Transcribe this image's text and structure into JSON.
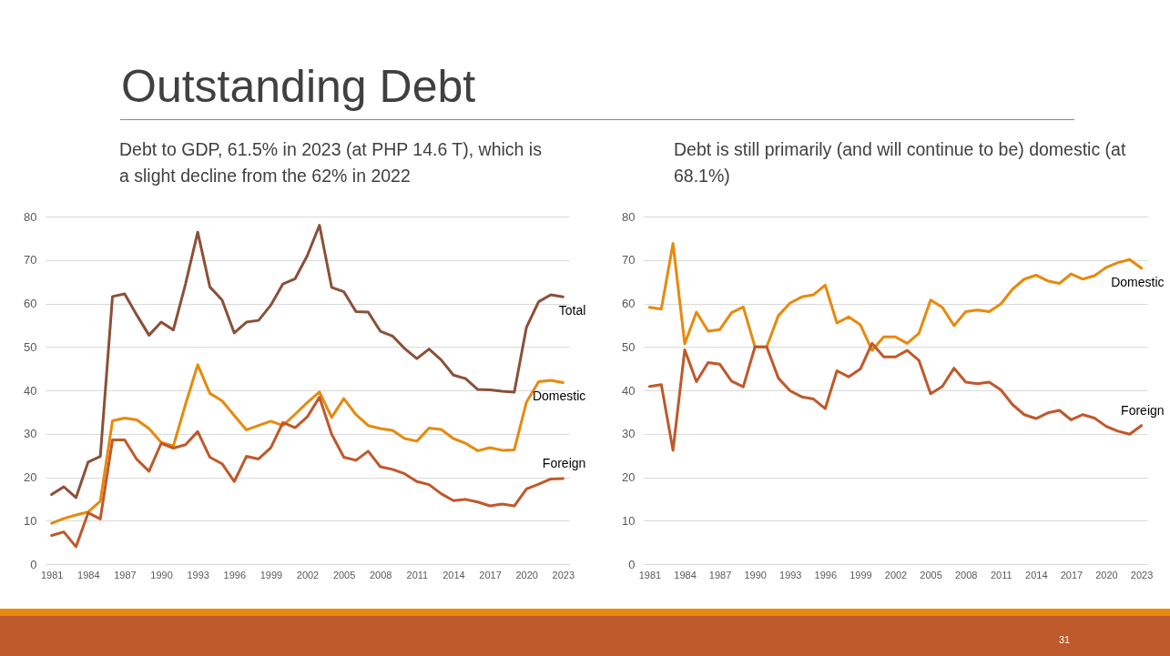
{
  "chart_data": [
    {
      "type": "line",
      "title": "Outstanding Debt",
      "subtitle": "Debt to GDP, 61.5% in 2023 (at PHP 14.6 T), which is a slight decline from the 62% in 2022",
      "categories": [
        "1981",
        null,
        null,
        "1984",
        null,
        null,
        "1987",
        null,
        null,
        "1990",
        null,
        null,
        "1993",
        null,
        null,
        "1996",
        null,
        null,
        "1999",
        null,
        null,
        "2002",
        null,
        null,
        "2005",
        null,
        null,
        "2008",
        null,
        null,
        "2011",
        null,
        null,
        "2014",
        null,
        null,
        "2017",
        null,
        null,
        "2020",
        null,
        null,
        "2023"
      ],
      "series": [
        {
          "name": "Total",
          "color": "#8b5038",
          "values": [
            16,
            17.8,
            15.3,
            23.5,
            24.8,
            61.6,
            62.2,
            57.3,
            52.7,
            55.7,
            53.9,
            64.5,
            76.4,
            63.8,
            60.8,
            53.2,
            55.7,
            56.1,
            59.6,
            64.5,
            65.7,
            71,
            78,
            63.7,
            62.7,
            58.1,
            58,
            53.6,
            52.5,
            49.6,
            47.3,
            49.5,
            47,
            43.5,
            42.7,
            40.2,
            40.1,
            39.8,
            39.6,
            54.5,
            60.4,
            62,
            61.5
          ]
        },
        {
          "name": "Domestic",
          "color": "#e8890c",
          "values": [
            9.4,
            10.5,
            11.3,
            12,
            14.5,
            33,
            33.6,
            33.2,
            31.2,
            28,
            27.2,
            36.8,
            45.9,
            39.3,
            37.6,
            34.2,
            30.9,
            31.9,
            32.9,
            31.9,
            34.5,
            37.2,
            39.6,
            33.8,
            38.1,
            34.4,
            31.9,
            31.2,
            30.8,
            28.9,
            28.3,
            31.3,
            31,
            28.9,
            27.8,
            26.1,
            26.8,
            26.2,
            26.3,
            37.3,
            42,
            42.3,
            41.8
          ]
        },
        {
          "name": "Foreign",
          "color": "#c0582a",
          "values": [
            6.6,
            7.4,
            4,
            11.8,
            10.4,
            28.6,
            28.6,
            24.1,
            21.4,
            27.8,
            26.7,
            27.5,
            30.5,
            24.6,
            23.1,
            19,
            24.8,
            24.2,
            26.8,
            32.6,
            31.4,
            33.9,
            38.4,
            29.9,
            24.6,
            23.9,
            26,
            22.4,
            21.8,
            20.8,
            19,
            18.3,
            16.2,
            14.6,
            14.9,
            14.3,
            13.4,
            13.8,
            13.4,
            17.3,
            18.4,
            19.6,
            19.7
          ]
        }
      ],
      "ylim": [
        0,
        80
      ],
      "yticks": [
        0,
        10,
        20,
        30,
        40,
        50,
        60,
        70,
        80
      ],
      "grid": "y",
      "line_style": "solid"
    },
    {
      "type": "line",
      "subtitle": "Debt is still primarily (and will continue to be) domestic (at 68.1%)",
      "categories": [
        "1981",
        null,
        null,
        "1984",
        null,
        null,
        "1987",
        null,
        null,
        "1990",
        null,
        null,
        "1993",
        null,
        null,
        "1996",
        null,
        null,
        "1999",
        null,
        null,
        "2002",
        null,
        null,
        "2005",
        null,
        null,
        "2008",
        null,
        null,
        "2011",
        null,
        null,
        "2014",
        null,
        null,
        "2017",
        null,
        null,
        "2020",
        null,
        null,
        "2023"
      ],
      "series": [
        {
          "name": "Domestic",
          "color": "#e8890c",
          "values": [
            59.1,
            58.7,
            73.8,
            50.7,
            58,
            53.6,
            54,
            57.9,
            59.2,
            50,
            50,
            57.2,
            60.1,
            61.5,
            62,
            64.2,
            55.5,
            56.9,
            55.1,
            49.2,
            52.3,
            52.3,
            50.8,
            53.1,
            60.8,
            59.1,
            54.9,
            58.1,
            58.5,
            58.1,
            59.9,
            63.3,
            65.6,
            66.5,
            65.2,
            64.6,
            66.8,
            65.6,
            66.4,
            68.3,
            69.4,
            70.1,
            68.1
          ]
        },
        {
          "name": "Foreign",
          "color": "#c0582a",
          "values": [
            40.9,
            41.3,
            26.2,
            49.3,
            42,
            46.4,
            46,
            42.1,
            40.8,
            50,
            50,
            42.8,
            39.9,
            38.5,
            38,
            35.8,
            44.5,
            43.1,
            44.9,
            50.8,
            47.7,
            47.7,
            49.2,
            46.9,
            39.2,
            40.9,
            45.1,
            41.9,
            41.5,
            41.9,
            40.1,
            36.7,
            34.4,
            33.5,
            34.8,
            35.4,
            33.2,
            34.4,
            33.6,
            31.7,
            30.6,
            29.9,
            31.9
          ]
        }
      ],
      "ylim": [
        0,
        80
      ],
      "yticks": [
        0,
        10,
        20,
        30,
        40,
        50,
        60,
        70,
        80
      ],
      "grid": "y",
      "line_style": "solid",
      "annotations": [
        "31"
      ]
    }
  ]
}
